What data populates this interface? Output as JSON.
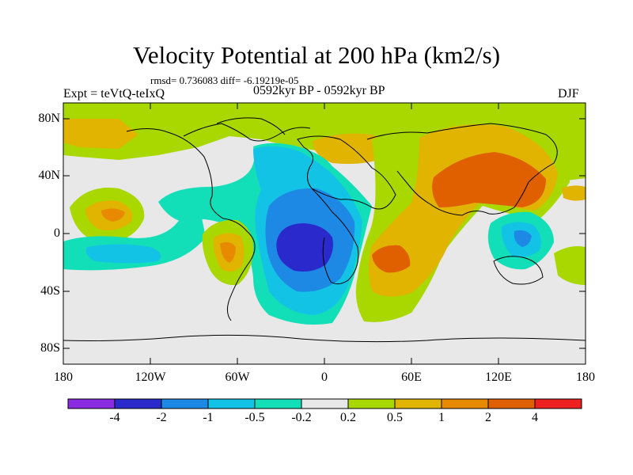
{
  "title": "Velocity Potential at 200 hPa (km2/s)",
  "stats": "rmsd= 0.736083  diff= -6.19219e-05",
  "experiment": "Expt = teVtQ-teIxQ",
  "period": "0592kyr BP - 0592kyr BP",
  "season": "DJF",
  "lat_labels": [
    "80N",
    "40N",
    "0",
    "40S",
    "80S"
  ],
  "lon_labels": [
    "180",
    "120W",
    "60W",
    "0",
    "60E",
    "120E",
    "180"
  ],
  "colorbar": {
    "levels": [
      "-4",
      "-2",
      "-1",
      "-0.5",
      "-0.2",
      "0.2",
      "0.5",
      "1",
      "2",
      "4"
    ],
    "colors": [
      "#8a2be2",
      "#2a2acc",
      "#1e88e5",
      "#12c3e6",
      "#12dfb8",
      "#e8e8e8",
      "#a8d800",
      "#e0b400",
      "#e88a00",
      "#e06000",
      "#ee2020"
    ]
  }
}
